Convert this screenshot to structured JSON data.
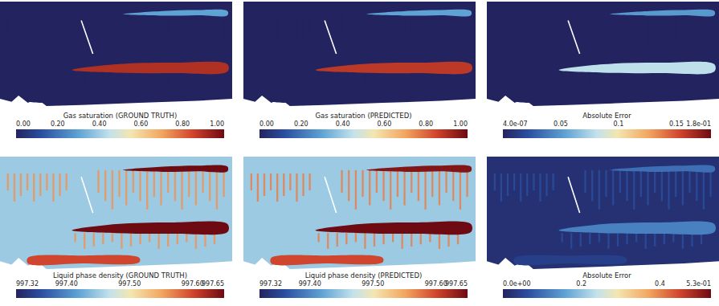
{
  "chart_data": [
    {
      "type": "heatmap",
      "title": "Gas saturation (GROUND TRUTH)",
      "colorbar_range": [
        0,
        1
      ],
      "colorbar_ticks": [
        {
          "value": 0,
          "label": "0.00"
        },
        {
          "value": 0.2,
          "label": "0.20"
        },
        {
          "value": 0.4,
          "label": "0.40"
        },
        {
          "value": 0.6,
          "label": "0.60"
        },
        {
          "value": 0.8,
          "label": "0.80"
        },
        {
          "value": 1,
          "label": "1.00"
        }
      ],
      "values": [
        0,
        0.9,
        0.3,
        0,
        0
      ]
    },
    {
      "type": "heatmap",
      "title": "Gas saturation (PREDICTED)",
      "colorbar_range": [
        0,
        1
      ],
      "colorbar_ticks": [
        {
          "value": 0,
          "label": "0.00"
        },
        {
          "value": 0.2,
          "label": "0.20"
        },
        {
          "value": 0.4,
          "label": "0.40"
        },
        {
          "value": 0.6,
          "label": "0.60"
        },
        {
          "value": 0.8,
          "label": "0.80"
        },
        {
          "value": 1,
          "label": "1.00"
        }
      ],
      "values": [
        0,
        0.88,
        0.3,
        0,
        0
      ]
    },
    {
      "type": "heatmap",
      "title": "Absolute Error",
      "colorbar_range": [
        4e-07,
        0.18
      ],
      "colorbar_ticks": [
        {
          "value": 4e-07,
          "label": "4.0e-07"
        },
        0.05,
        0.1,
        0.15,
        {
          "value": 0.18,
          "label": "1.8e-01"
        }
      ],
      "values": [
        1e-05,
        0.08,
        0.05,
        1e-05,
        1e-05
      ]
    },
    {
      "type": "heatmap",
      "title": "Liquid phase density (GROUND TRUTH)",
      "colorbar_range": [
        997.32,
        997.65
      ],
      "colorbar_ticks": [
        997.32,
        {
          "value": 997.4,
          "label": "997.40"
        },
        {
          "value": 997.5,
          "label": "997.50"
        },
        {
          "value": 997.6,
          "label": "997.60"
        },
        997.65
      ],
      "values": [
        997.45,
        997.65,
        997.65,
        997.56,
        997.6
      ]
    },
    {
      "type": "heatmap",
      "title": "Liquid phase density (PREDICTED)",
      "colorbar_range": [
        997.32,
        997.65
      ],
      "colorbar_ticks": [
        997.32,
        {
          "value": 997.4,
          "label": "997.40"
        },
        {
          "value": 997.5,
          "label": "997.50"
        },
        {
          "value": 997.6,
          "label": "997.60"
        },
        997.65
      ],
      "values": [
        997.45,
        997.65,
        997.64,
        997.57,
        997.6
      ]
    },
    {
      "type": "heatmap",
      "title": "Absolute Error",
      "colorbar_range": [
        0,
        0.53
      ],
      "colorbar_ticks": [
        {
          "value": 0,
          "label": "0.0e+00"
        },
        0.2,
        0.4,
        {
          "value": 0.53,
          "label": "5.3e-01"
        }
      ],
      "values": [
        0.02,
        0.12,
        0.1,
        0.06,
        0.04
      ]
    }
  ]
}
